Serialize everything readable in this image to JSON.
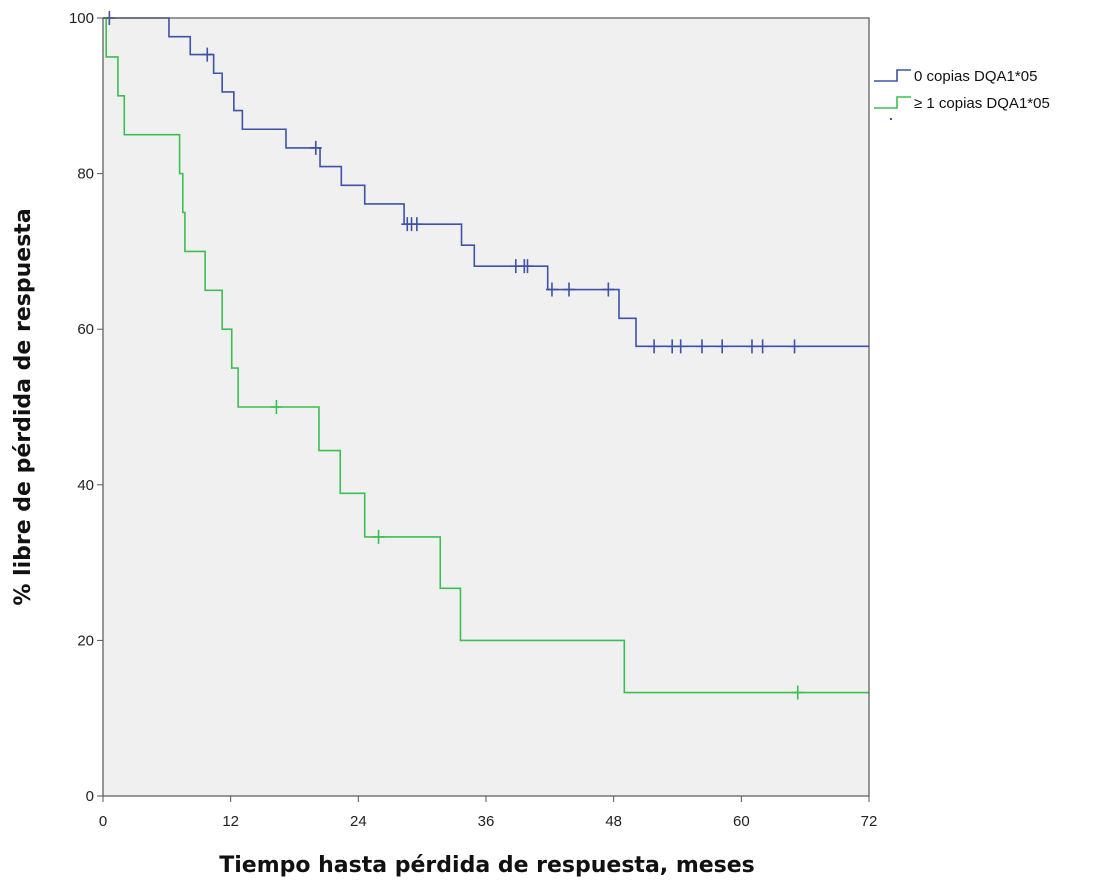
{
  "chart_data": {
    "type": "line",
    "subtype": "kaplan-meier",
    "title": "",
    "xlabel": "Tiempo hasta pérdida de respuesta, meses",
    "ylabel": "% libre de pérdida de respuesta",
    "xlim": [
      0,
      72
    ],
    "ylim": [
      0,
      100
    ],
    "xticks": [
      0,
      12,
      24,
      36,
      48,
      60,
      72
    ],
    "yticks": [
      0,
      20,
      40,
      60,
      80,
      100
    ],
    "grid": false,
    "legend_position": "right",
    "plot_background": "#f0f0f0",
    "series": [
      {
        "name": "0 copias DQA1*05",
        "color": "#3d52a8",
        "steps": [
          [
            0,
            100
          ],
          [
            6.2,
            97.6
          ],
          [
            8.2,
            95.3
          ],
          [
            10.4,
            92.9
          ],
          [
            11.2,
            90.5
          ],
          [
            12.3,
            88.1
          ],
          [
            13.1,
            85.7
          ],
          [
            17.2,
            83.3
          ],
          [
            20.4,
            80.9
          ],
          [
            22.4,
            78.5
          ],
          [
            24.6,
            76.1
          ],
          [
            28.3,
            73.5
          ],
          [
            33.7,
            70.8
          ],
          [
            34.9,
            68.1
          ],
          [
            41.8,
            65.1
          ],
          [
            48.5,
            61.4
          ],
          [
            50.1,
            57.8
          ],
          [
            72,
            57.8
          ]
        ],
        "censored": [
          [
            0.6,
            100
          ],
          [
            9.8,
            95.3
          ],
          [
            20.0,
            83.3
          ],
          [
            28.6,
            73.5
          ],
          [
            29.0,
            73.5
          ],
          [
            29.5,
            73.5
          ],
          [
            38.8,
            68.1
          ],
          [
            39.6,
            68.1
          ],
          [
            39.9,
            68.1
          ],
          [
            42.2,
            65.1
          ],
          [
            43.8,
            65.1
          ],
          [
            47.5,
            65.1
          ],
          [
            51.8,
            57.8
          ],
          [
            53.5,
            57.8
          ],
          [
            54.3,
            57.8
          ],
          [
            56.3,
            57.8
          ],
          [
            58.2,
            57.8
          ],
          [
            61.0,
            57.8
          ],
          [
            62.0,
            57.8
          ],
          [
            65.0,
            57.8
          ]
        ]
      },
      {
        "name": "≥ 1 copias DQA1*05",
        "color": "#3cbf52",
        "steps": [
          [
            0,
            100
          ],
          [
            0.3,
            95
          ],
          [
            1.4,
            90
          ],
          [
            2.0,
            85
          ],
          [
            7.2,
            80
          ],
          [
            7.5,
            75
          ],
          [
            7.7,
            70
          ],
          [
            9.6,
            65
          ],
          [
            11.2,
            60
          ],
          [
            12.1,
            55
          ],
          [
            12.7,
            50
          ],
          [
            20.3,
            44.4
          ],
          [
            22.3,
            38.9
          ],
          [
            24.6,
            33.3
          ],
          [
            31.7,
            26.7
          ],
          [
            33.6,
            20.0
          ],
          [
            49.0,
            13.3
          ],
          [
            72,
            13.3
          ]
        ],
        "censored": [
          [
            16.3,
            50
          ],
          [
            25.9,
            33.3
          ],
          [
            65.3,
            13.3
          ]
        ]
      }
    ]
  }
}
